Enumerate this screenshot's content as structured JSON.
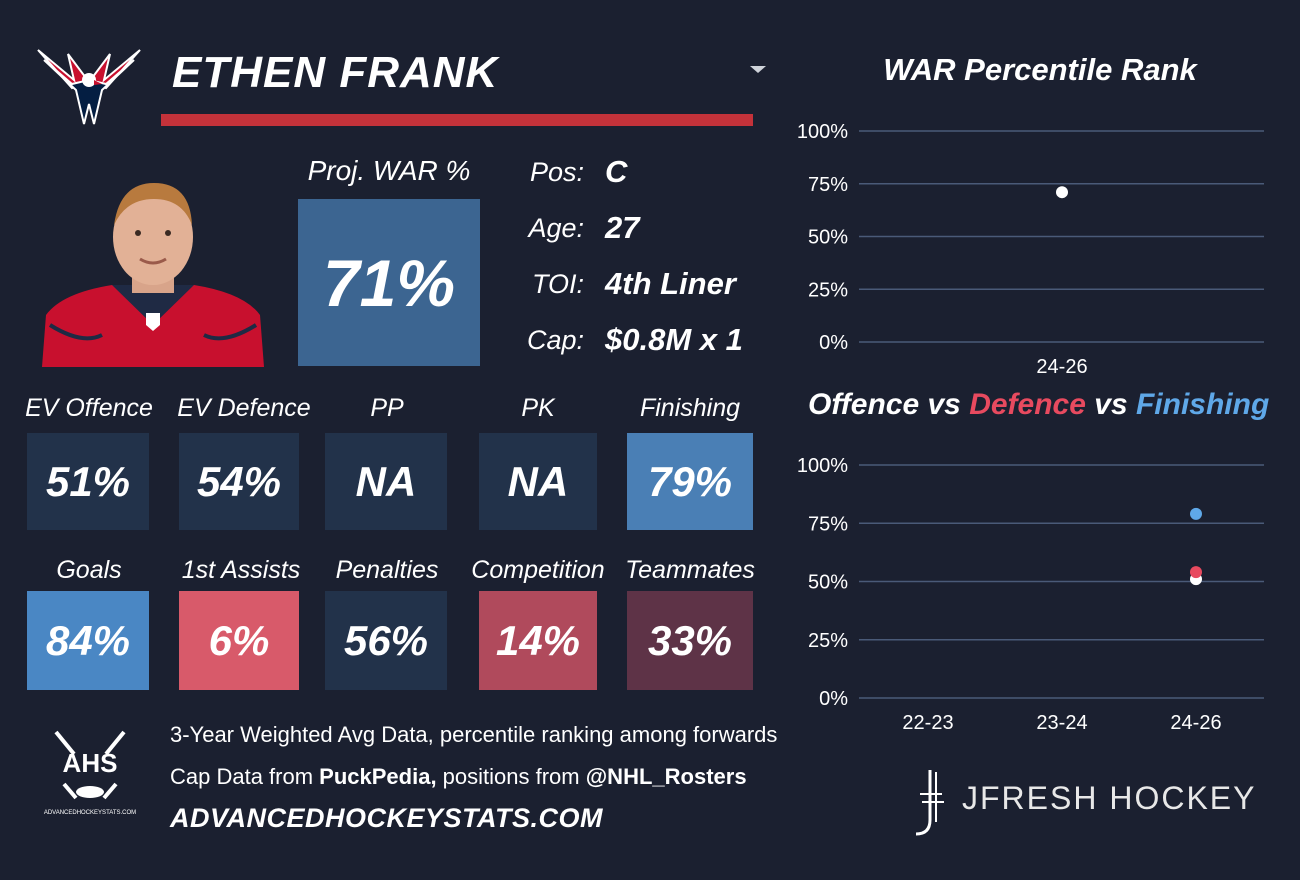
{
  "player": {
    "name": "ETHEN FRANK",
    "proj_war_label": "Proj. WAR %",
    "proj_war_value": "71%"
  },
  "info": [
    {
      "key": "Pos:",
      "value": "C"
    },
    {
      "key": "Age:",
      "value": "27"
    },
    {
      "key": "TOI:",
      "value": "4th Liner"
    },
    {
      "key": "Cap:",
      "value": "$0.8M x 1"
    }
  ],
  "stats_row1": [
    {
      "label": "EV Offence",
      "value": "51%",
      "color": "#22324a"
    },
    {
      "label": "EV Defence",
      "value": "54%",
      "color": "#22324a"
    },
    {
      "label": "PP",
      "value": "NA",
      "color": "#22324a"
    },
    {
      "label": "PK",
      "value": "NA",
      "color": "#22324a"
    },
    {
      "label": "Finishing",
      "value": "79%",
      "color": "#4a7fb5"
    }
  ],
  "stats_row2": [
    {
      "label": "Goals",
      "value": "84%",
      "color": "#4a87c4"
    },
    {
      "label": "1st Assists",
      "value": "6%",
      "color": "#d85a6a"
    },
    {
      "label": "Penalties",
      "value": "56%",
      "color": "#22324a"
    },
    {
      "label": "Competition",
      "value": "14%",
      "color": "#b04a5c"
    },
    {
      "label": "Teammates",
      "value": "33%",
      "color": "#5e3347"
    }
  ],
  "chart_data": [
    {
      "type": "scatter",
      "title": "WAR Percentile Rank",
      "categories": [
        "24-26"
      ],
      "yticks": [
        "100%",
        "75%",
        "50%",
        "25%",
        "0%"
      ],
      "ylim": [
        0,
        100
      ],
      "series": [
        {
          "values": [
            71
          ],
          "color": "#ffffff"
        }
      ]
    },
    {
      "type": "scatter",
      "title_parts": [
        "Offence",
        " vs ",
        "Defence",
        " vs ",
        "Finishing"
      ],
      "categories": [
        "22-23",
        "23-24",
        "24-26"
      ],
      "yticks": [
        "100%",
        "75%",
        "50%",
        "25%",
        "0%"
      ],
      "ylim": [
        0,
        100
      ],
      "series": [
        {
          "values": [
            null,
            null,
            51
          ],
          "color": "#ffffff"
        },
        {
          "values": [
            null,
            null,
            54
          ],
          "color": "#e84a5f"
        },
        {
          "values": [
            null,
            null,
            79
          ],
          "color": "#5fa8e8"
        }
      ]
    }
  ],
  "footer": {
    "line1": "3-Year Weighted Avg Data, percentile ranking among forwards",
    "line2_a": "Cap Data from ",
    "line2_b": "PuckPedia,",
    "line2_c": " positions from ",
    "line2_d": "@NHL_Rosters",
    "url": "ADVANCEDHOCKEYSTATS.COM",
    "ahs_logo_text": "AHS",
    "ahs_logo_sub": "ADVANCEDHOCKEYSTATS.COM",
    "brand": "JFRESH HOCKEY"
  },
  "colors": {
    "background": "#1b2030",
    "accent_red": "#c4323a",
    "offence": "#ffffff",
    "defence": "#e84a5f",
    "finishing": "#5fa8e8"
  },
  "icons": [
    "capitals-logo-icon",
    "player-photo",
    "dropdown-caret-icon",
    "ahs-logo-icon",
    "jfresh-logo-icon"
  ]
}
